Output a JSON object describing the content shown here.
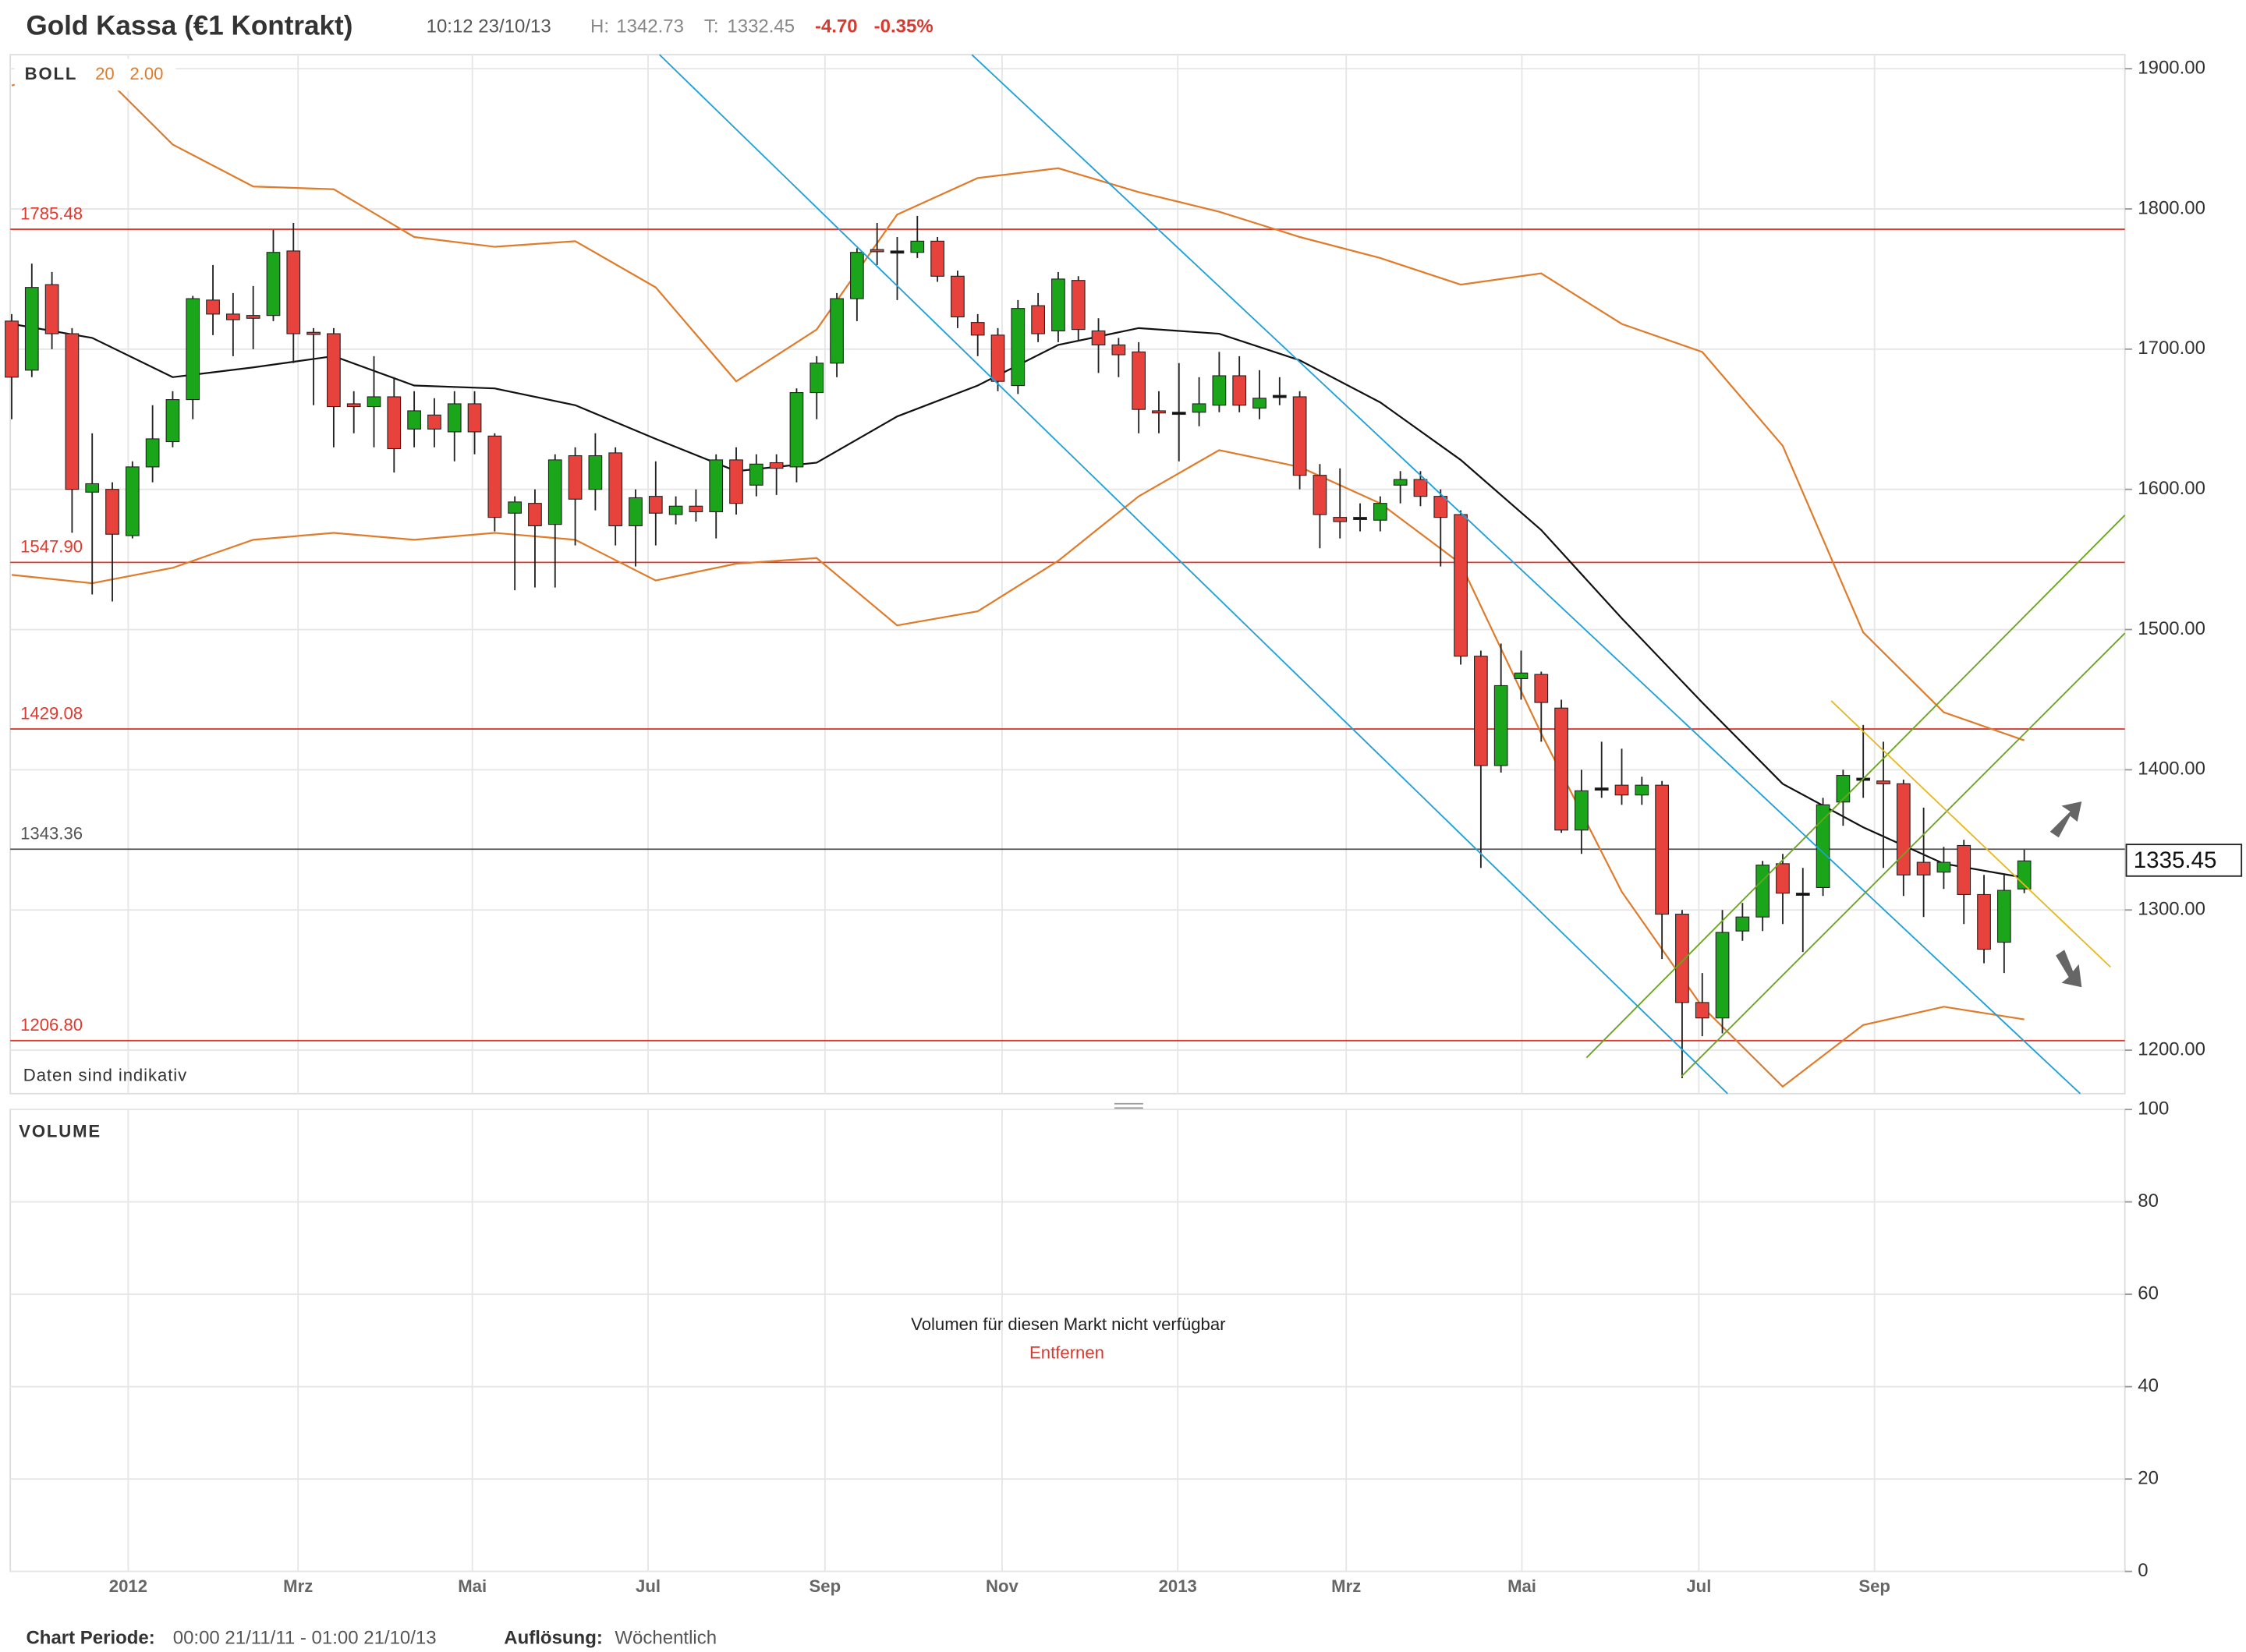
{
  "header": {
    "title": "Gold Kassa (€1 Kontrakt)",
    "time": "10:12 23/10/13",
    "high_label": "H:",
    "high": 1342.73,
    "low_label": "T:",
    "low": 1332.45,
    "change": {
      "value": -4.7,
      "label": "-4.70"
    },
    "change_pct": {
      "value": -0.35,
      "label": "-0.35%"
    }
  },
  "footer": {
    "period_label": "Chart Periode:",
    "period": "00:00 21/11/11 - 01:00 21/10/13",
    "resolution_label": "Auflösung:",
    "resolution": "Wöchentlich"
  },
  "chart_data": {
    "type": "candlestick",
    "indicator": {
      "name": "BOLL",
      "period": 20,
      "deviation": {
        "value": 2,
        "label": "2.00"
      }
    },
    "note": "Daten sind indikativ",
    "up_color": "#1aa51a",
    "down_color": "#e8423c",
    "band_color": "#e07b2a",
    "middle_color": "#111111",
    "grid": true,
    "xlim": [
      -0.07,
      105
    ],
    "xticks": [
      {
        "value": 5.79,
        "label": "2012"
      },
      {
        "value": 14.23,
        "label": "Mrz"
      },
      {
        "value": 22.89,
        "label": "Mai"
      },
      {
        "value": 31.62,
        "label": "Jul"
      },
      {
        "value": 40.41,
        "label": "Sep"
      },
      {
        "value": 49.21,
        "label": "Nov"
      },
      {
        "value": 57.94,
        "label": "2013"
      },
      {
        "value": 66.31,
        "label": "Mrz"
      },
      {
        "value": 75.04,
        "label": "Mai"
      },
      {
        "value": 83.83,
        "label": "Jul"
      },
      {
        "value": 92.56,
        "label": "Sep"
      }
    ],
    "ylim": [
      1169,
      1910
    ],
    "yticks": [
      {
        "value": 1200,
        "label": "1200.00"
      },
      {
        "value": 1300,
        "label": "1300.00"
      },
      {
        "value": 1400,
        "label": "1400.00"
      },
      {
        "value": 1500,
        "label": "1500.00"
      },
      {
        "value": 1600,
        "label": "1600.00"
      },
      {
        "value": 1700,
        "label": "1700.00"
      },
      {
        "value": 1800,
        "label": "1800.00"
      },
      {
        "value": 1900,
        "label": "1900.00"
      }
    ],
    "open": [
      1720,
      1685,
      1746,
      1711,
      1598,
      1600,
      1567,
      1616,
      1634,
      1664,
      1735,
      1725,
      1724,
      1724,
      1770,
      1712,
      1711,
      1661,
      1659,
      1666,
      1643,
      1653,
      1641,
      1661,
      1638,
      1583,
      1590,
      1575,
      1624,
      1600,
      1626,
      1574,
      1595,
      1582,
      1588,
      1584,
      1621,
      1603,
      1619,
      1616,
      1669,
      1690,
      1736,
      1771,
      1770,
      1769,
      1777,
      1752,
      1719,
      1710,
      1674,
      1731,
      1713,
      1749,
      1713,
      1703,
      1698,
      1656,
      1655,
      1655,
      1660,
      1681,
      1658,
      1667,
      1666,
      1610,
      1580,
      1580,
      1578,
      1603,
      1607,
      1595,
      1582,
      1481,
      1403,
      1465,
      1468,
      1444,
      1357,
      1387,
      1389,
      1382,
      1389,
      1297,
      1234,
      1223,
      1285,
      1295,
      1333,
      1312,
      1316,
      1377,
      1394,
      1392,
      1390,
      1334,
      1327,
      1346,
      1311,
      1277,
      1315
    ],
    "high": [
      1725,
      1761,
      1755,
      1715,
      1640,
      1605,
      1620,
      1660,
      1670,
      1738,
      1760,
      1740,
      1745,
      1785,
      1790,
      1715,
      1715,
      1670,
      1695,
      1680,
      1670,
      1665,
      1670,
      1670,
      1640,
      1595,
      1600,
      1625,
      1630,
      1640,
      1630,
      1600,
      1620,
      1595,
      1600,
      1625,
      1630,
      1625,
      1625,
      1672,
      1695,
      1740,
      1772,
      1790,
      1780,
      1795,
      1780,
      1756,
      1725,
      1715,
      1735,
      1740,
      1755,
      1752,
      1722,
      1708,
      1705,
      1670,
      1690,
      1680,
      1698,
      1695,
      1685,
      1680,
      1670,
      1618,
      1615,
      1590,
      1595,
      1613,
      1613,
      1600,
      1585,
      1485,
      1490,
      1485,
      1470,
      1450,
      1400,
      1420,
      1415,
      1395,
      1392,
      1300,
      1255,
      1300,
      1305,
      1335,
      1340,
      1330,
      1380,
      1400,
      1432,
      1420,
      1393,
      1373,
      1345,
      1350,
      1325,
      1325,
      1343
    ],
    "low": [
      1650,
      1680,
      1700,
      1569,
      1525,
      1520,
      1565,
      1605,
      1630,
      1650,
      1710,
      1695,
      1700,
      1720,
      1690,
      1660,
      1630,
      1640,
      1630,
      1612,
      1630,
      1630,
      1620,
      1625,
      1570,
      1528,
      1530,
      1530,
      1560,
      1585,
      1560,
      1545,
      1560,
      1575,
      1577,
      1565,
      1582,
      1595,
      1596,
      1605,
      1650,
      1680,
      1720,
      1760,
      1735,
      1765,
      1748,
      1715,
      1695,
      1670,
      1668,
      1705,
      1705,
      1706,
      1683,
      1680,
      1640,
      1640,
      1620,
      1645,
      1655,
      1655,
      1650,
      1660,
      1600,
      1558,
      1565,
      1570,
      1570,
      1590,
      1588,
      1545,
      1475,
      1330,
      1398,
      1450,
      1420,
      1355,
      1340,
      1380,
      1375,
      1375,
      1265,
      1180,
      1210,
      1212,
      1278,
      1285,
      1290,
      1270,
      1310,
      1360,
      1380,
      1330,
      1310,
      1295,
      1315,
      1290,
      1262,
      1255,
      1312
    ],
    "close": [
      1680,
      1744,
      1711,
      1600,
      1604,
      1568,
      1616,
      1636,
      1664,
      1736,
      1725,
      1721,
      1722,
      1769,
      1711,
      1711,
      1659,
      1659,
      1666,
      1629,
      1656,
      1643,
      1661,
      1641,
      1580,
      1591,
      1574,
      1621,
      1593,
      1624,
      1574,
      1594,
      1583,
      1588,
      1584,
      1621,
      1590,
      1618,
      1615,
      1669,
      1690,
      1736,
      1769,
      1770,
      1770,
      1777,
      1752,
      1723,
      1710,
      1677,
      1729,
      1711,
      1750,
      1714,
      1703,
      1696,
      1657,
      1655,
      1655,
      1661,
      1681,
      1660,
      1665,
      1667,
      1610,
      1582,
      1577,
      1580,
      1590,
      1607,
      1595,
      1580,
      1481,
      1403,
      1460,
      1469,
      1448,
      1357,
      1385,
      1387,
      1382,
      1389,
      1297,
      1234,
      1223,
      1284,
      1295,
      1332,
      1312,
      1312,
      1375,
      1396,
      1394,
      1390,
      1325,
      1325,
      1334,
      1311,
      1272,
      1314,
      1335
    ],
    "bands": {
      "x": [
        0,
        4,
        8,
        12,
        16,
        20,
        24,
        28,
        32,
        36,
        40,
        44,
        48,
        52,
        56,
        60,
        64,
        68,
        72,
        76,
        80,
        84,
        88,
        92,
        96,
        100
      ],
      "upper": [
        1888,
        1903,
        1846,
        1816,
        1814,
        1780,
        1773,
        1777,
        1744,
        1677,
        1714,
        1796,
        1822,
        1829,
        1812,
        1798,
        1780,
        1765,
        1746,
        1754,
        1718,
        1698,
        1631,
        1498,
        1441,
        1421
      ],
      "middle": [
        1718,
        1708,
        1680,
        1687,
        1695,
        1674,
        1672,
        1660,
        1636,
        1613,
        1619,
        1652,
        1674,
        1703,
        1715,
        1711,
        1692,
        1662,
        1621,
        1571,
        1508,
        1448,
        1390,
        1359,
        1333,
        1323
      ],
      "lower": [
        1539,
        1533,
        1544,
        1564,
        1569,
        1564,
        1569,
        1564,
        1535,
        1547,
        1551,
        1503,
        1513,
        1549,
        1595,
        1628,
        1616,
        1590,
        1547,
        1426,
        1313,
        1231,
        1174,
        1218,
        1231,
        1222
      ]
    },
    "levels": [
      {
        "value": 1785.48,
        "label": "1785.48",
        "color": "#e03a2f"
      },
      {
        "value": 1547.9,
        "label": "1547.90",
        "color": "#e03a2f"
      },
      {
        "value": 1429.08,
        "label": "1429.08",
        "color": "#e03a2f"
      },
      {
        "value": 1343.36,
        "label": "1343.36",
        "color": "#555555"
      },
      {
        "value": 1206.8,
        "label": "1206.80",
        "color": "#e03a2f"
      }
    ],
    "last_price": {
      "value": 1335.45,
      "label": "1335.45"
    },
    "volume": {
      "title": "VOLUME",
      "ylim": [
        0,
        100
      ],
      "yticks": [
        0,
        20,
        40,
        60,
        80,
        100
      ],
      "message": "Volumen für diesen Markt nicht verfügbar",
      "action": "Entfernen"
    }
  }
}
